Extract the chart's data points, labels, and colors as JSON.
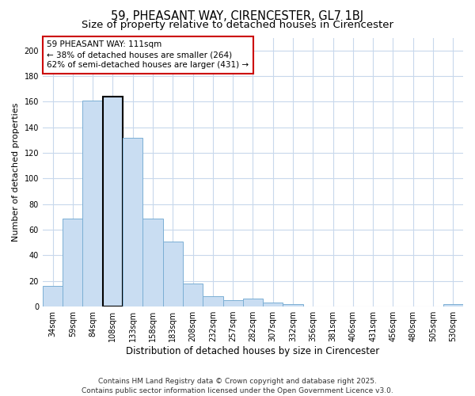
{
  "title": "59, PHEASANT WAY, CIRENCESTER, GL7 1BJ",
  "subtitle": "Size of property relative to detached houses in Cirencester",
  "xlabel": "Distribution of detached houses by size in Cirencester",
  "ylabel": "Number of detached properties",
  "categories": [
    "34sqm",
    "59sqm",
    "84sqm",
    "108sqm",
    "133sqm",
    "158sqm",
    "183sqm",
    "208sqm",
    "232sqm",
    "257sqm",
    "282sqm",
    "307sqm",
    "332sqm",
    "356sqm",
    "381sqm",
    "406sqm",
    "431sqm",
    "456sqm",
    "480sqm",
    "505sqm",
    "530sqm"
  ],
  "values": [
    16,
    69,
    161,
    164,
    132,
    69,
    51,
    18,
    8,
    5,
    6,
    3,
    2,
    0,
    0,
    0,
    0,
    0,
    0,
    0,
    2
  ],
  "bar_color": "#c9ddf2",
  "bar_edge_color": "#7bafd4",
  "highlight_bar_index": 3,
  "highlight_bar_edge_color": "#000000",
  "background_color": "#ffffff",
  "plot_bg_color": "#ffffff",
  "grid_color": "#c8d8ec",
  "annotation_text": "59 PHEASANT WAY: 111sqm\n← 38% of detached houses are smaller (264)\n62% of semi-detached houses are larger (431) →",
  "annotation_box_color": "#ffffff",
  "annotation_box_edge_color": "#cc0000",
  "ylim": [
    0,
    210
  ],
  "yticks": [
    0,
    20,
    40,
    60,
    80,
    100,
    120,
    140,
    160,
    180,
    200
  ],
  "footer_line1": "Contains HM Land Registry data © Crown copyright and database right 2025.",
  "footer_line2": "Contains public sector information licensed under the Open Government Licence v3.0.",
  "title_fontsize": 10.5,
  "subtitle_fontsize": 9.5,
  "xlabel_fontsize": 8.5,
  "ylabel_fontsize": 8,
  "tick_fontsize": 7,
  "annotation_fontsize": 7.5,
  "footer_fontsize": 6.5
}
